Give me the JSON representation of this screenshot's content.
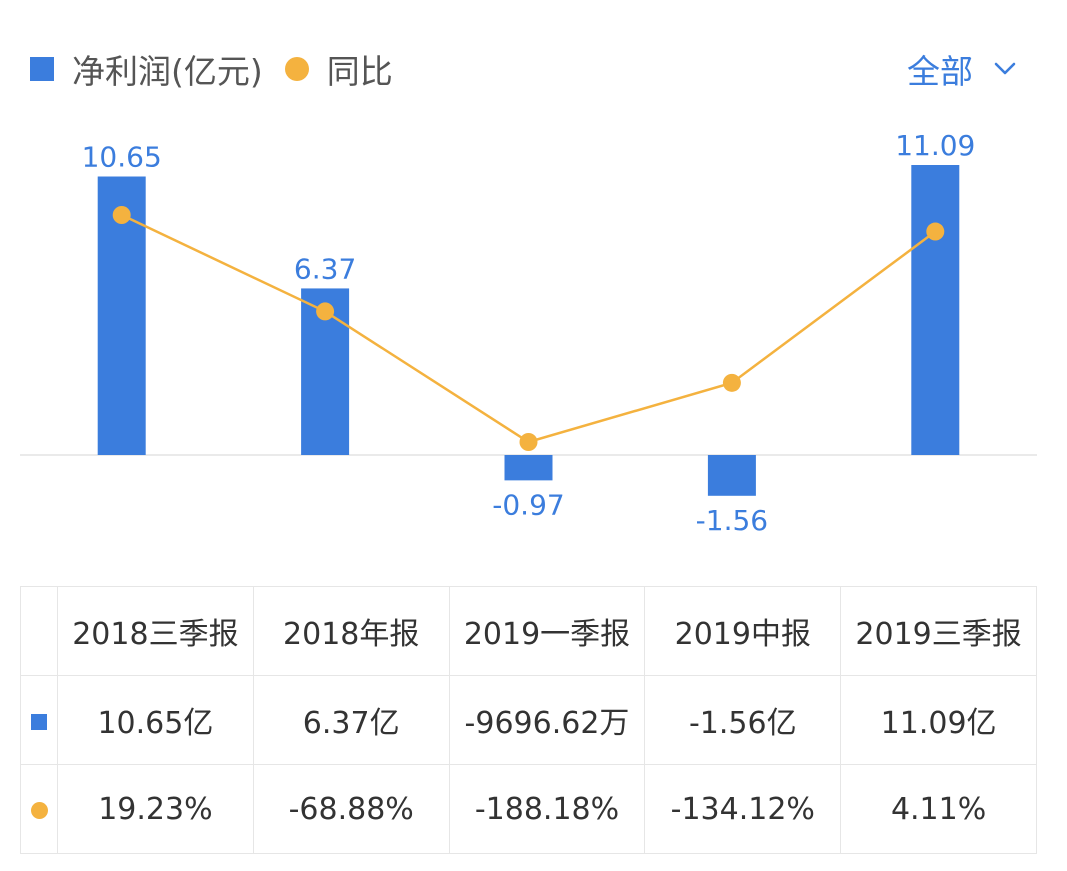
{
  "legend": {
    "bar_label": "净利润(亿元)",
    "line_label": "同比",
    "bar_color": "#3b7ddd",
    "line_color": "#f4b23f"
  },
  "filter": {
    "label": "全部",
    "icon": "chevron-down-icon"
  },
  "chart_data": {
    "type": "bar",
    "categories": [
      "2018三季报",
      "2018年报",
      "2019一季报",
      "2019中报",
      "2019三季报"
    ],
    "series": [
      {
        "name": "净利润(亿元)",
        "type": "bar",
        "values": [
          10.65,
          6.37,
          -0.97,
          -1.56,
          11.09
        ],
        "labels": [
          "10.65",
          "6.37",
          "-0.97",
          "-1.56",
          "11.09"
        ]
      },
      {
        "name": "同比",
        "type": "line",
        "values": [
          19.23,
          -68.88,
          -188.18,
          -134.12,
          4.11
        ]
      }
    ],
    "title": "",
    "xlabel": "",
    "ylabel": "",
    "grid": false,
    "legend_position": "top-left"
  },
  "table": {
    "headers": [
      "2018三季报",
      "2018年报",
      "2019一季报",
      "2019中报",
      "2019三季报"
    ],
    "profit_row": [
      "10.65亿",
      "6.37亿",
      "-9696.62万",
      "-1.56亿",
      "11.09亿"
    ],
    "yoy_row": [
      "19.23%",
      "-68.88%",
      "-188.18%",
      "-134.12%",
      "4.11%"
    ],
    "yoy_sign": [
      "pos",
      "neg",
      "neg",
      "neg",
      "pos"
    ]
  },
  "colors": {
    "positive": "#e0393e",
    "negative": "#1fa532"
  }
}
